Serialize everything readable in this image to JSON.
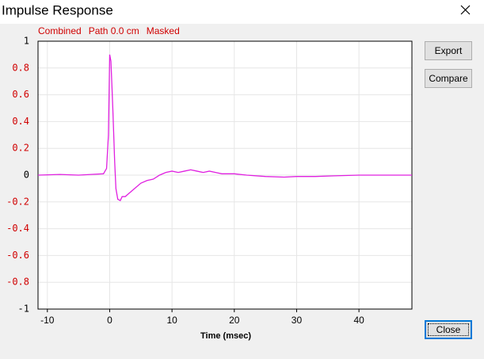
{
  "window": {
    "title": "Impulse Response"
  },
  "buttons": [
    "Export",
    "Compare",
    "Close"
  ],
  "chart_data": {
    "type": "line",
    "header": [
      "Combined",
      "Path 0.0 cm",
      "Masked"
    ],
    "header_color": "#d00000",
    "xlabel": "Time (msec)",
    "x": [
      -11.5,
      -8,
      -5,
      -3,
      -1,
      -0.5,
      -0.2,
      0,
      0.2,
      0.5,
      0.8,
      1,
      1.3,
      1.7,
      2,
      2.5,
      3,
      4,
      5,
      6,
      7,
      8,
      9,
      10,
      11,
      12,
      13,
      14,
      15,
      16,
      17,
      18,
      20,
      22,
      25,
      28,
      30,
      33,
      36,
      40,
      45,
      48.5
    ],
    "values": [
      0,
      0.005,
      0,
      0.005,
      0.01,
      0.05,
      0.3,
      0.9,
      0.85,
      0.5,
      0.1,
      -0.1,
      -0.18,
      -0.19,
      -0.16,
      -0.16,
      -0.14,
      -0.1,
      -0.06,
      -0.04,
      -0.03,
      0,
      0.02,
      0.03,
      0.02,
      0.03,
      0.04,
      0.03,
      0.02,
      0.03,
      0.02,
      0.01,
      0.01,
      0,
      -0.01,
      -0.015,
      -0.01,
      -0.01,
      -0.005,
      0,
      0,
      0
    ],
    "color": "#e020e0",
    "xlim": [
      -11.5,
      48.5
    ],
    "ylim": [
      -1,
      1
    ],
    "xticks": [
      -10,
      0,
      10,
      20,
      30,
      40
    ],
    "yticks": [
      -1,
      -0.8,
      -0.6,
      -0.4,
      -0.2,
      0,
      0.2,
      0.4,
      0.6,
      0.8,
      1
    ],
    "ytick_label_colors": [
      "#000000",
      "#d00000",
      "#d00000",
      "#d00000",
      "#d00000",
      "#000000",
      "#d00000",
      "#d00000",
      "#d00000",
      "#d00000",
      "#000000"
    ],
    "grid": true
  }
}
